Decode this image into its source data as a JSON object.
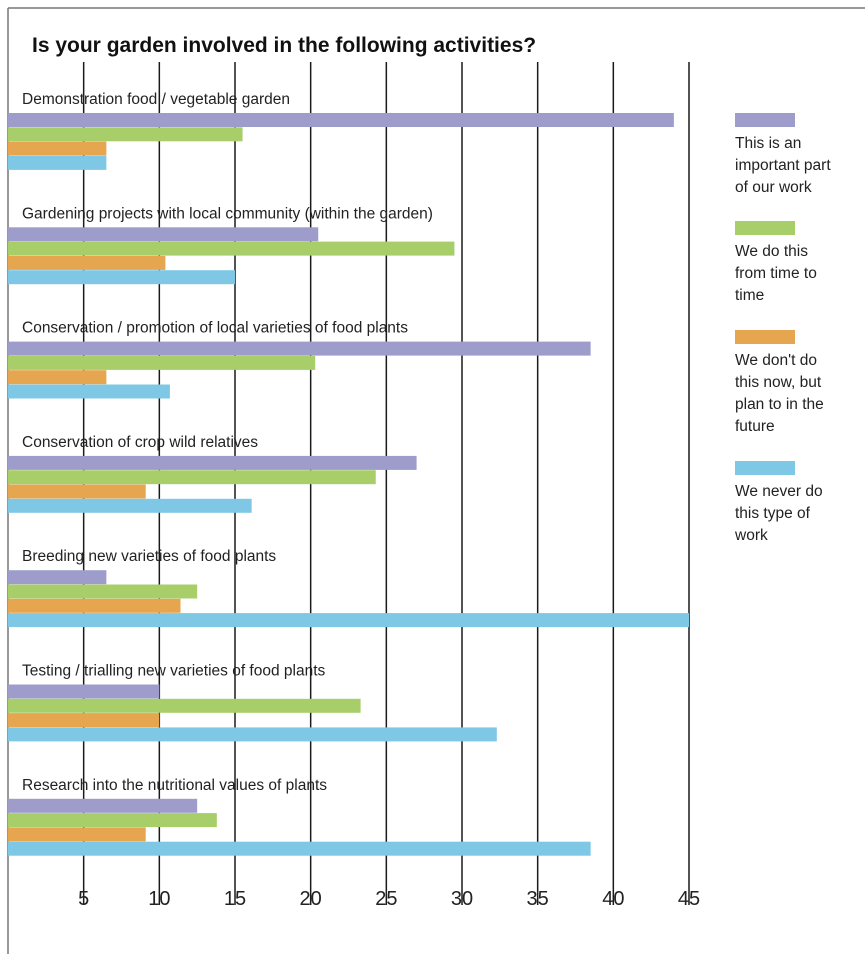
{
  "chart_data": {
    "type": "bar",
    "orientation": "horizontal",
    "title": "Is your garden involved in the following activities?",
    "xlabel": "",
    "ylabel": "",
    "xlim": [
      0,
      45
    ],
    "x_ticks": [
      5,
      10,
      15,
      20,
      25,
      30,
      35,
      40,
      45
    ],
    "grid": "vertical lines at each tick",
    "legend_position": "right",
    "categories": [
      "Demonstration food / vegetable garden",
      "Gardening projects with local community (within the garden)",
      "Conservation / promotion of local varieties of food plants",
      "Conservation of crop wild relatives",
      "Breeding new varieties of food plants",
      "Testing / trialling new varieties of food plants",
      "Research into the nutritional values of plants"
    ],
    "series": [
      {
        "name": "This is an important part of our work",
        "color": "#9e9ccb",
        "values": [
          44,
          20.5,
          38.5,
          27,
          6.5,
          10,
          12.5
        ]
      },
      {
        "name": "We do this from time to time",
        "color": "#a8ce6a",
        "values": [
          15.5,
          29.5,
          20.3,
          24.3,
          12.5,
          23.3,
          13.8
        ]
      },
      {
        "name": "We don't do this now, but plan to in the future",
        "color": "#e6a650",
        "values": [
          6.5,
          10.4,
          6.5,
          9.1,
          11.4,
          10,
          9.1
        ]
      },
      {
        "name": "We never do this type of work",
        "color": "#7ec8e6",
        "values": [
          6.5,
          15,
          10.7,
          16.1,
          45,
          32.3,
          38.5
        ]
      }
    ]
  },
  "legend_lines": [
    [
      "This is an",
      "important part",
      "of our work"
    ],
    [
      "We do this",
      "from time to",
      "time"
    ],
    [
      "We don't do",
      "this now, but",
      "plan to in the",
      "future"
    ],
    [
      "We never do",
      "this type of",
      "work"
    ]
  ]
}
